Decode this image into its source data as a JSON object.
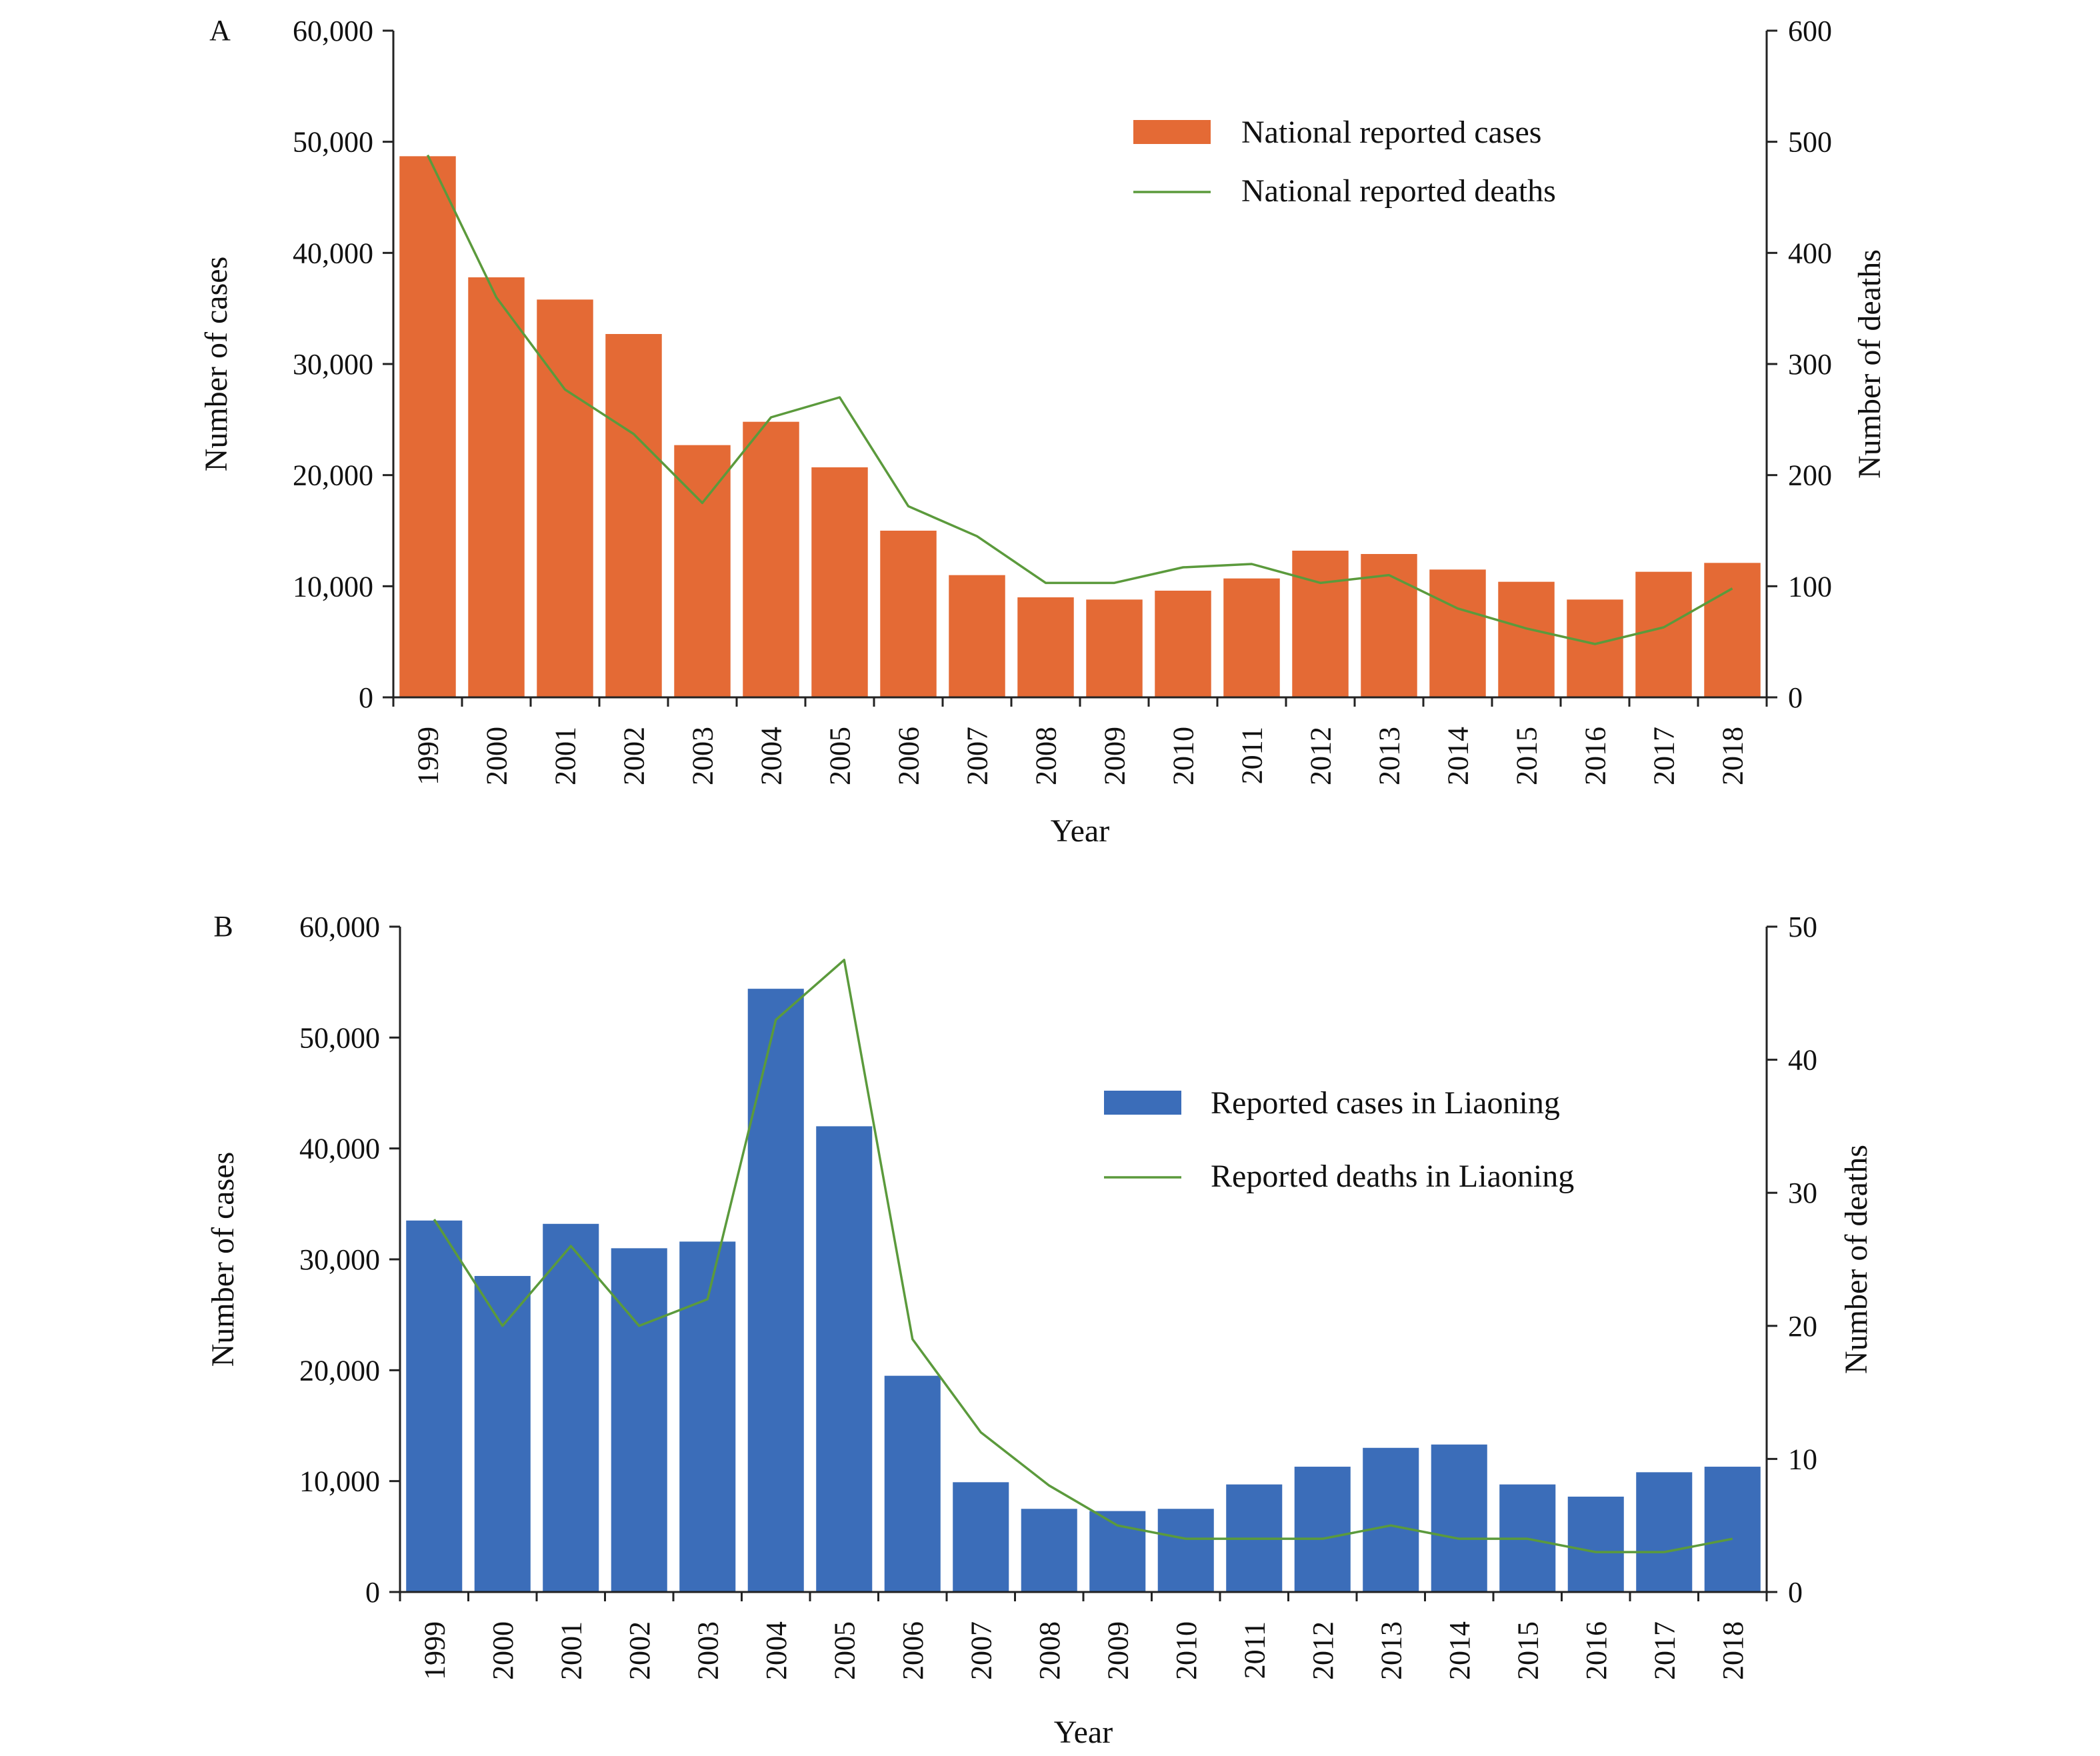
{
  "chart_data": [
    {
      "panel_label": "A",
      "type": "bar",
      "categories": [
        "1999",
        "2000",
        "2001",
        "2002",
        "2003",
        "2004",
        "2005",
        "2006",
        "2007",
        "2008",
        "2009",
        "2010",
        "2011",
        "2012",
        "2013",
        "2014",
        "2015",
        "2016",
        "2017",
        "2018"
      ],
      "series": [
        {
          "name": "National reported cases",
          "type": "bar",
          "axis": "left",
          "color": "#E46A35",
          "values": [
            48700,
            37800,
            35800,
            32700,
            22700,
            24800,
            20700,
            15000,
            11000,
            9000,
            8800,
            9600,
            10700,
            13200,
            12900,
            11500,
            10400,
            8800,
            11300,
            12100
          ]
        },
        {
          "name": "National reported deaths",
          "type": "line",
          "axis": "right",
          "color": "#5B9A3C",
          "values": [
            488,
            360,
            277,
            237,
            175,
            252,
            270,
            172,
            145,
            103,
            103,
            117,
            120,
            103,
            110,
            80,
            62,
            48,
            63,
            98
          ]
        }
      ],
      "xlabel": "Year",
      "ylabel": "Number of cases",
      "y2label": "Number of deaths",
      "ylim": [
        0,
        60000
      ],
      "y2lim": [
        0,
        600
      ],
      "yticks": [
        "0",
        "10,000",
        "20,000",
        "30,000",
        "40,000",
        "50,000",
        "60,000"
      ],
      "y2ticks": [
        "0",
        "100",
        "200",
        "300",
        "400",
        "500",
        "600"
      ],
      "legend_position": "top-right",
      "grid": false
    },
    {
      "panel_label": "B",
      "type": "bar",
      "categories": [
        "1999",
        "2000",
        "2001",
        "2002",
        "2003",
        "2004",
        "2005",
        "2006",
        "2007",
        "2008",
        "2009",
        "2010",
        "2011",
        "2012",
        "2013",
        "2014",
        "2015",
        "2016",
        "2017",
        "2018"
      ],
      "series": [
        {
          "name": "Reported cases in Liaoning",
          "type": "bar",
          "axis": "left",
          "color": "#3B6DB9",
          "values": [
            33500,
            28500,
            33200,
            31000,
            31600,
            54400,
            42000,
            19500,
            9900,
            7500,
            7300,
            7500,
            9700,
            11300,
            13000,
            13300,
            9700,
            8600,
            10800,
            11300
          ]
        },
        {
          "name": "Reported deaths in Liaoning",
          "type": "line",
          "axis": "right",
          "color": "#5B9A3C",
          "values": [
            28,
            20,
            26,
            20,
            22,
            43,
            47.5,
            19,
            12,
            8,
            5,
            4,
            4,
            4,
            5,
            4,
            4,
            3,
            3,
            4
          ]
        }
      ],
      "xlabel": "Year",
      "ylabel": "Number of cases",
      "y2label": "Number of deaths",
      "ylim": [
        0,
        60000
      ],
      "y2lim": [
        0,
        50
      ],
      "yticks": [
        "0",
        "10,000",
        "20,000",
        "30,000",
        "40,000",
        "50,000",
        "60,000"
      ],
      "y2ticks": [
        "0",
        "10",
        "20",
        "30",
        "40",
        "50"
      ],
      "legend_position": "top-right",
      "grid": false
    }
  ]
}
